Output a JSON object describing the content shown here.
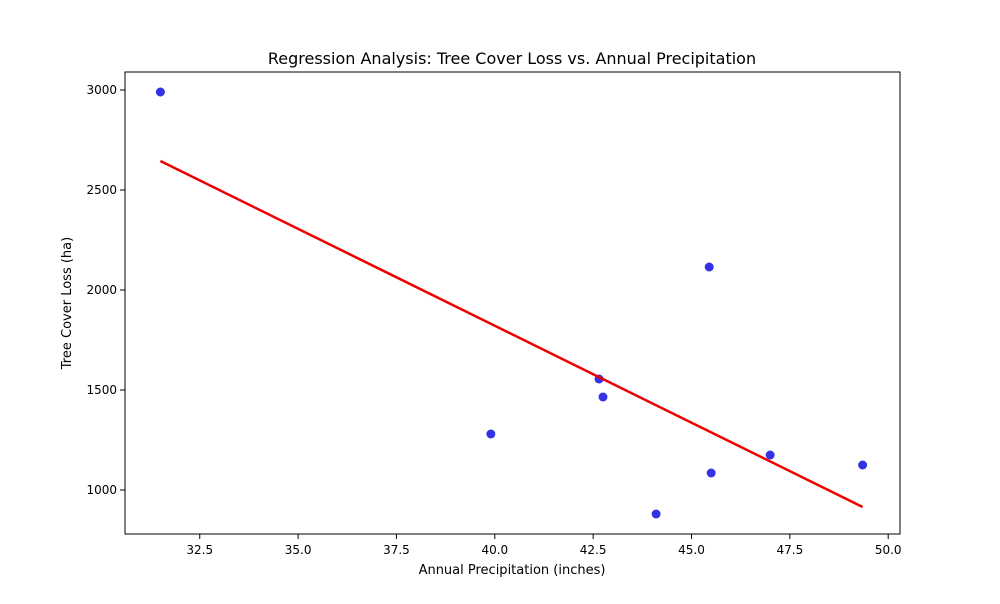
{
  "chart_data": {
    "type": "scatter",
    "title": "Regression Analysis: Tree Cover Loss vs. Annual Precipitation",
    "xlabel": "Annual Precipitation (inches)",
    "ylabel": "Tree Cover Loss (ha)",
    "xlim": [
      30.6,
      50.3
    ],
    "ylim": [
      780,
      3090
    ],
    "xticks": [
      32.5,
      35.0,
      37.5,
      40.0,
      42.5,
      45.0,
      47.5,
      50.0
    ],
    "xtick_labels": [
      "32.5",
      "35.0",
      "37.5",
      "40.0",
      "42.5",
      "45.0",
      "47.5",
      "50.0"
    ],
    "yticks": [
      1000,
      1500,
      2000,
      2500,
      3000
    ],
    "ytick_labels": [
      "1000",
      "1500",
      "2000",
      "2500",
      "3000"
    ],
    "grid": false,
    "series": [
      {
        "kind": "points",
        "color": "#0000dd",
        "x": [
          31.5,
          39.9,
          42.65,
          42.75,
          44.1,
          45.45,
          45.5,
          47.0,
          49.35
        ],
        "y": [
          2990,
          1280,
          1555,
          1465,
          880,
          2115,
          1085,
          1175,
          1125
        ]
      },
      {
        "kind": "fit-line",
        "color": "#ee0000",
        "x": [
          31.5,
          49.35
        ],
        "y": [
          2645,
          915
        ]
      }
    ]
  }
}
